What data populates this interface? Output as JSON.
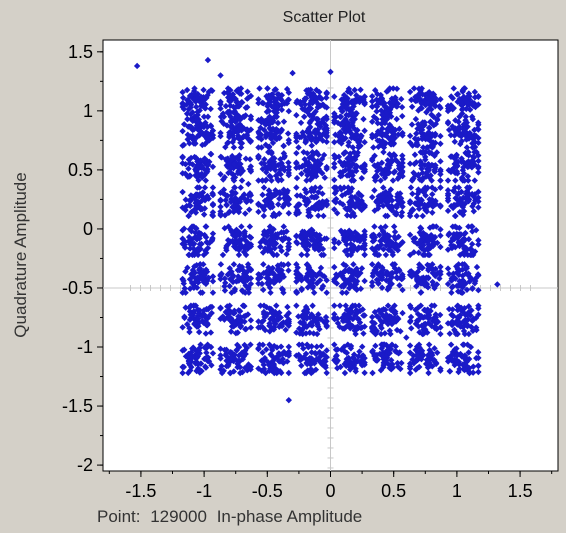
{
  "window": {
    "title": "Scatter Plot"
  },
  "footer": {
    "point_prefix": "Point:",
    "point_value": "129000",
    "xlabel": "In-phase Amplitude"
  },
  "colors": {
    "marker": "#1a1ac8",
    "background": "#d4d0c8",
    "plot_area": "#ffffff",
    "crosshair": "#c8c8c8"
  },
  "chart_data": {
    "type": "scatter",
    "title": "Scatter Plot",
    "xlabel": "In-phase Amplitude",
    "ylabel": "Quadrature Amplitude",
    "xlim": [
      -1.8,
      1.8
    ],
    "ylim": [
      -2.05,
      1.6
    ],
    "xticks": [
      -1.5,
      -1,
      -0.5,
      0,
      0.5,
      1,
      1.5
    ],
    "xtick_labels": [
      "-1.5",
      "-1",
      "-0.5",
      "0",
      "0.5",
      "1",
      "1.5"
    ],
    "yticks": [
      1.5,
      1,
      0.5,
      0,
      -0.5,
      -1,
      -1.5,
      -2
    ],
    "ytick_labels": [
      "1.5",
      "1",
      "0.5",
      "0",
      "-0.5",
      "-1",
      "-1.5",
      "-2"
    ],
    "grid": false,
    "marker": "diamond",
    "constellation": {
      "i_levels": [
        -1.05,
        -0.75,
        -0.45,
        -0.15,
        0.15,
        0.45,
        0.75,
        1.05
      ],
      "q_levels": [
        1.07,
        0.81,
        0.53,
        0.23,
        -0.1,
        -0.42,
        -0.77,
        -1.1
      ],
      "cluster_spread": 0.07,
      "points_per_cluster": 60
    },
    "outliers": [
      {
        "x": -1.53,
        "y": 1.38
      },
      {
        "x": -0.97,
        "y": 1.43
      },
      {
        "x": -0.87,
        "y": 1.3
      },
      {
        "x": -0.3,
        "y": 1.32
      },
      {
        "x": 0.0,
        "y": 1.33
      },
      {
        "x": 1.32,
        "y": -0.47
      },
      {
        "x": -0.33,
        "y": -1.45
      },
      {
        "x": -0.65,
        "y": 0.38
      },
      {
        "x": 0.6,
        "y": -0.92
      }
    ]
  }
}
